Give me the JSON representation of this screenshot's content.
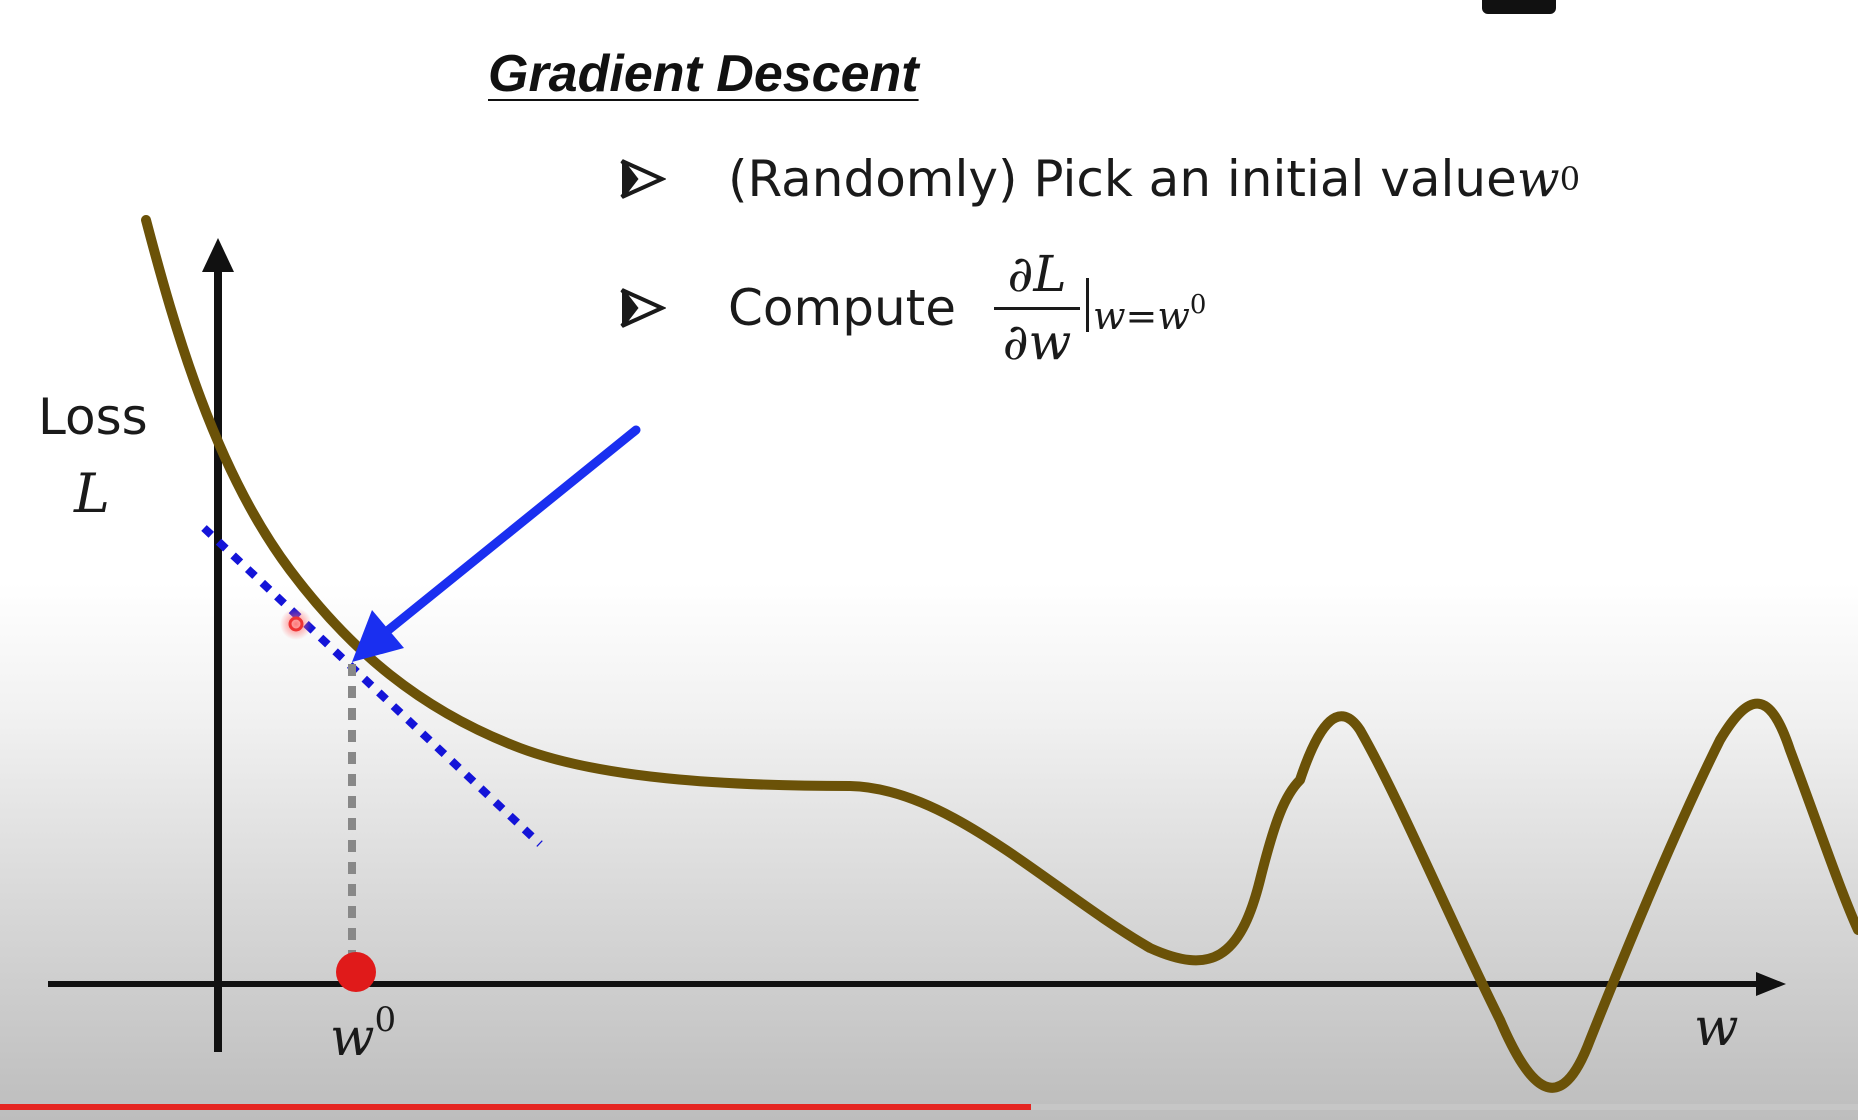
{
  "slide": {
    "title": "Gradient Descent",
    "bullets": [
      {
        "text": "(Randomly) Pick an initial value ",
        "math": "w",
        "sup": "0"
      },
      {
        "text": "Compute",
        "frac_num": "∂L",
        "frac_den": "∂w",
        "eval_sub": "w=w",
        "eval_sup": "0"
      }
    ]
  },
  "plot": {
    "y_axis_label": "Loss",
    "y_axis_symbol": "L",
    "x_axis_label": "w",
    "point_label": "w",
    "point_label_sup": "0"
  },
  "colors": {
    "curve": "#6b5208",
    "tangent": "#1414d8",
    "arrow": "#1a2ff0",
    "point": "#e01a1a",
    "dotted_drop": "#888888"
  },
  "video": {
    "progress_fraction": 0.555
  }
}
